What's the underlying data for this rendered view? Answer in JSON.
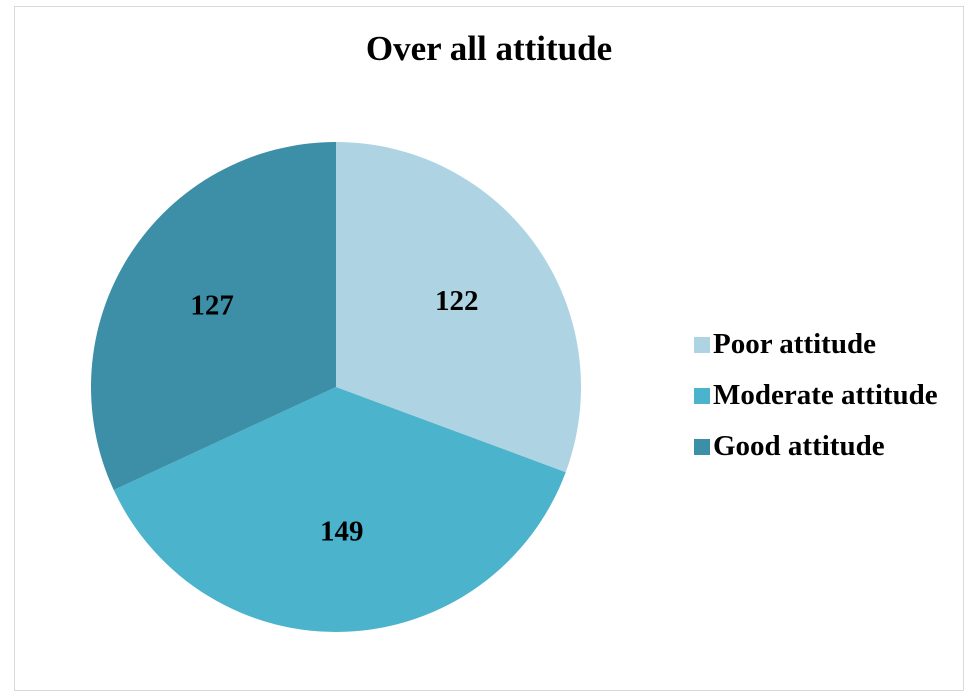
{
  "chart_data": {
    "type": "pie",
    "title": "Over all attitude",
    "categories": [
      "Poor attitude",
      "Moderate attitude",
      "Good attitude"
    ],
    "values": [
      122,
      149,
      127
    ],
    "colors": [
      "#aed4e3",
      "#4bb3cc",
      "#3d8fa7"
    ],
    "data_labels": [
      "122",
      "149",
      "127"
    ],
    "start_angle_deg": 0,
    "direction": "clockwise",
    "legend_position": "right"
  }
}
